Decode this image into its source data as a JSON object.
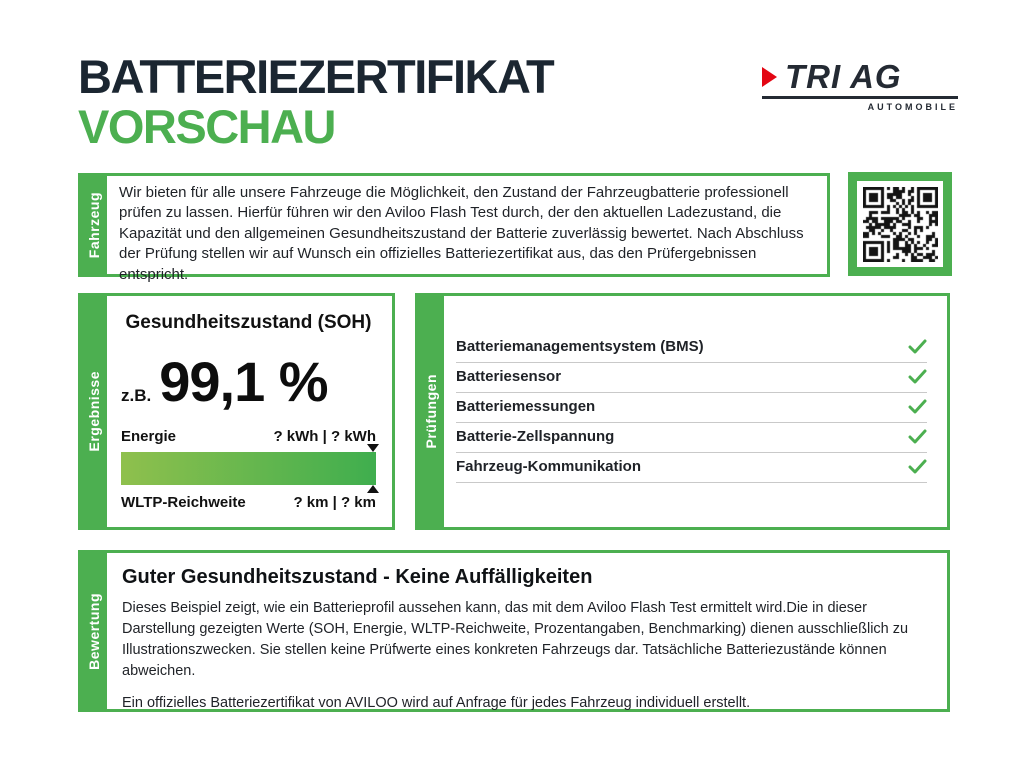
{
  "header": {
    "title_line1": "BATTERIEZERTIFIKAT",
    "title_line2": "VORSCHAU"
  },
  "logo": {
    "name": "TRI AG",
    "subtitle": "AUTOMOBILE"
  },
  "colors": {
    "green": "#4caf50",
    "dark_navy": "#1b2631",
    "logo_red": "#e30613",
    "bar_gradient_start": "#8fc04d",
    "bar_gradient_end": "#3fae4e",
    "divider_gray": "#c9c9c9"
  },
  "fahrzeug": {
    "tab_label": "Fahrzeug",
    "text": "Wir bieten für alle unsere Fahrzeuge die Möglichkeit, den Zustand der Fahrzeugbatterie professionell prüfen zu lassen. Hierfür führen wir den Aviloo Flash Test durch, der den aktuellen Ladezustand, die Kapazität und den allgemeinen Gesundheitszustand der Batterie zuverlässig bewertet. Nach Abschluss der Prüfung stellen wir auf Wunsch ein offizielles Batteriezertifikat aus, das den Prüfergebnissen entspricht."
  },
  "ergebnisse": {
    "tab_label": "Ergebnisse",
    "title": "Gesundheitszustand (SOH)",
    "example_prefix": "z.B.",
    "soh_value": "99,1 %",
    "energy_label": "Energie",
    "energy_value": "? kWh | ? kWh",
    "range_label": "WLTP-Reichweite",
    "range_value": "? km | ? km"
  },
  "pruefungen": {
    "tab_label": "Prüfungen",
    "items": [
      "Batteriemanagementsystem (BMS)",
      "Batteriesensor",
      "Batteriemessungen",
      "Batterie-Zellspannung",
      "Fahrzeug-Kommunikation"
    ]
  },
  "bewertung": {
    "tab_label": "Bewertung",
    "heading": "Guter Gesundheitszustand - Keine Auffälligkeiten",
    "paragraph1": "Dieses Beispiel zeigt, wie ein Batterieprofil aussehen kann, das mit dem Aviloo Flash Test ermittelt wird.Die in dieser Darstellung gezeigten Werte (SOH, Energie, WLTP-Reichweite, Prozentangaben, Benchmarking) dienen ausschließlich zu Illustrationszwecken. Sie stellen keine Prüfwerte eines konkreten Fahrzeugs dar. Tatsächliche Batteriezustände können abweichen.",
    "paragraph2": "Ein offizielles Batteriezertifikat von AVILOO wird auf Anfrage für jedes Fahrzeug individuell erstellt."
  }
}
